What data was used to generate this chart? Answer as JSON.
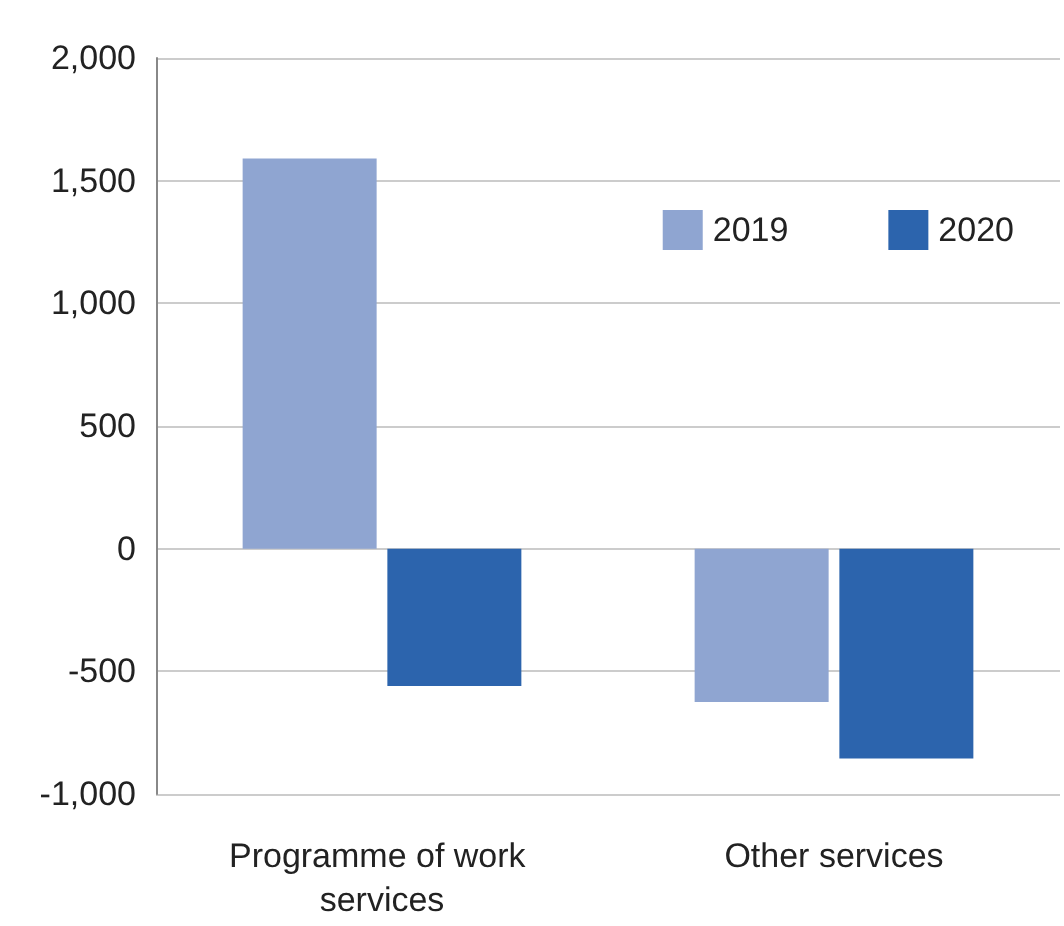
{
  "chart_data": {
    "type": "bar",
    "categories": [
      "Programme of work services",
      "Other services"
    ],
    "series": [
      {
        "name": "2019",
        "color": "#8fa5d1",
        "values": [
          1590,
          -625
        ]
      },
      {
        "name": "2020",
        "color": "#2c64ad",
        "values": [
          -560,
          -855
        ]
      }
    ],
    "ylim": [
      -1000,
      2000
    ],
    "yticks": [
      {
        "value": -1000,
        "label": "-1,000"
      },
      {
        "value": -500,
        "label": "-500"
      },
      {
        "value": 0,
        "label": "0"
      },
      {
        "value": 500,
        "label": "500"
      },
      {
        "value": 1000,
        "label": "1,000"
      },
      {
        "value": 1500,
        "label": "1,500"
      },
      {
        "value": 2000,
        "label": "2,000"
      }
    ],
    "grid": "y",
    "legend": "top right"
  }
}
